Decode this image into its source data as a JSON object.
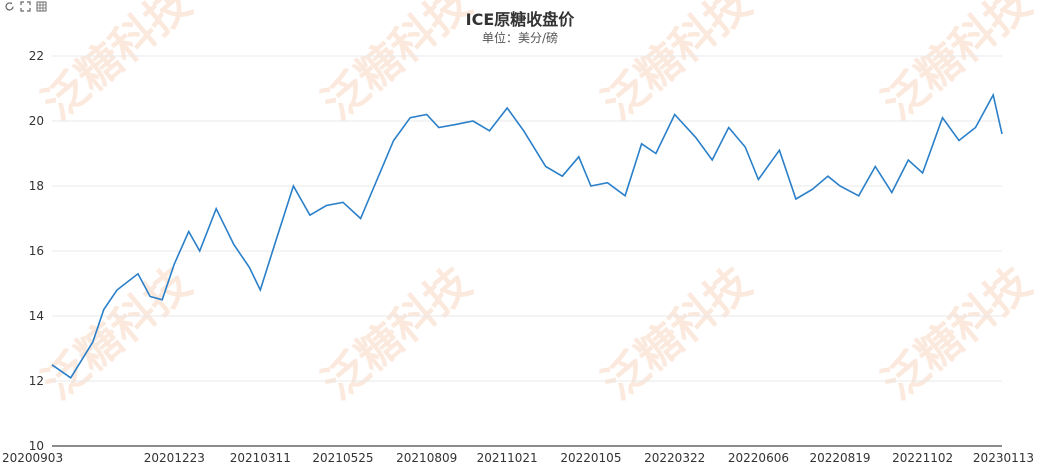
{
  "toolbar": {
    "icons": [
      "refresh-icon",
      "fullscreen-icon",
      "data-view-icon"
    ]
  },
  "watermark": "泛糖科技",
  "colors": {
    "line": "#2a7fc9",
    "grid": "#e8e8e8",
    "axis": "#666666",
    "watermark": "#f7cfb6"
  },
  "chart_data": {
    "type": "line",
    "title": "ICE原糖收盘价",
    "subtitle": "单位：美分/磅",
    "ylim": [
      10,
      22
    ],
    "yticks": [
      10,
      12,
      14,
      16,
      18,
      20,
      22
    ],
    "grid": true,
    "legend": "none",
    "x_tick_labels": [
      "20200903",
      "20201223",
      "20210311",
      "20210525",
      "20210809",
      "20211021",
      "20220105",
      "20220322",
      "20220606",
      "20220819",
      "20221102",
      "20230113"
    ],
    "series": [
      {
        "name": "",
        "x": [
          "20200903",
          "20200920",
          "20201010",
          "20201020",
          "20201101",
          "20201120",
          "20201201",
          "20201212",
          "20201223",
          "20210105",
          "20210115",
          "20210130",
          "20210215",
          "20210301",
          "20210311",
          "20210325",
          "20210410",
          "20210425",
          "20210510",
          "20210525",
          "20210610",
          "20210625",
          "20210710",
          "20210725",
          "20210809",
          "20210820",
          "20210905",
          "20210920",
          "20211005",
          "20211021",
          "20211105",
          "20211125",
          "20211210",
          "20211225",
          "20220105",
          "20220120",
          "20220205",
          "20220220",
          "20220305",
          "20220322",
          "20220410",
          "20220425",
          "20220510",
          "20220525",
          "20220606",
          "20220625",
          "20220710",
          "20220725",
          "20220808",
          "20220819",
          "20220905",
          "20220920",
          "20221005",
          "20221020",
          "20221102",
          "20221120",
          "20221205",
          "20221220",
          "20230105",
          "20230113"
        ],
        "values": [
          12.5,
          12.1,
          13.2,
          14.2,
          14.8,
          15.3,
          14.6,
          14.5,
          15.6,
          16.6,
          16.0,
          17.3,
          16.2,
          15.5,
          14.8,
          16.3,
          18.0,
          17.1,
          17.4,
          17.5,
          17.0,
          18.2,
          19.4,
          20.1,
          20.2,
          19.8,
          19.9,
          20.0,
          19.7,
          20.4,
          19.7,
          18.6,
          18.3,
          18.9,
          18.0,
          18.1,
          17.7,
          19.3,
          19.0,
          20.2,
          19.5,
          18.8,
          19.8,
          19.2,
          18.2,
          19.1,
          17.6,
          17.9,
          18.3,
          18.0,
          17.7,
          18.6,
          17.8,
          18.8,
          18.4,
          20.1,
          19.4,
          19.8,
          20.8,
          19.6
        ]
      }
    ]
  }
}
